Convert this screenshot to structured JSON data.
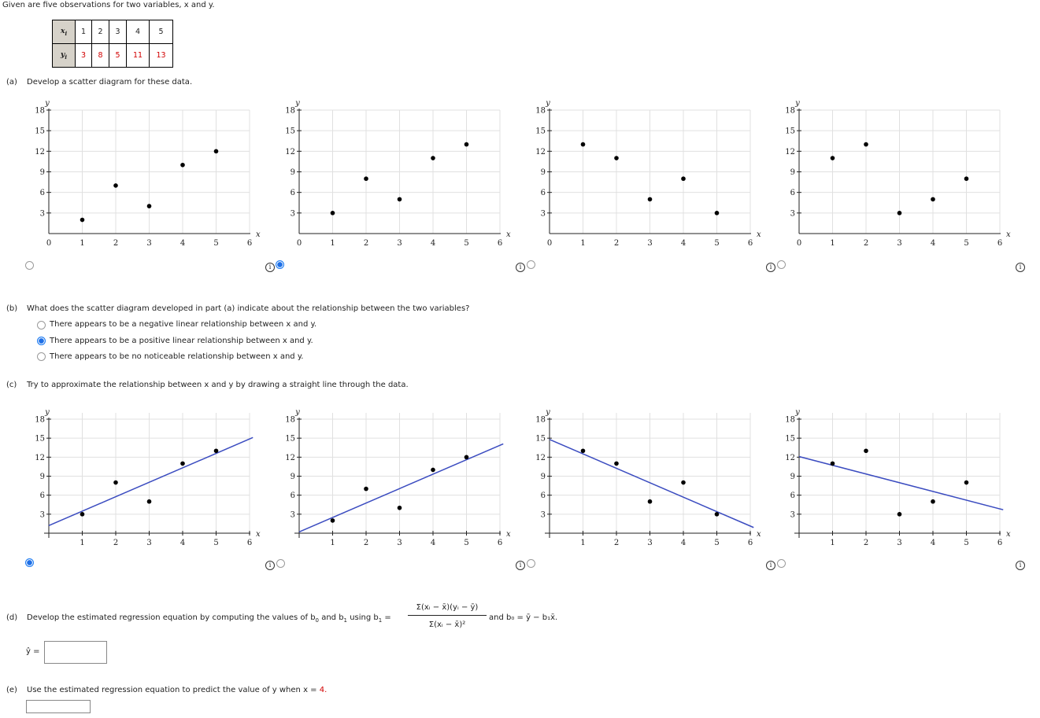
{
  "intro": "Given are five observations for two variables, x and y.",
  "table": {
    "x_label": "x",
    "y_label": "y",
    "sub": "i",
    "x_values": [
      "1",
      "2",
      "3",
      "4",
      "5"
    ],
    "y_values": [
      "3",
      "8",
      "5",
      "11",
      "13"
    ]
  },
  "part_a": {
    "label": "(a)",
    "prompt": "Develop a scatter diagram for these data.",
    "selected_index": 1
  },
  "part_b": {
    "label": "(b)",
    "prompt": "What does the scatter diagram developed in part (a) indicate about the relationship between the two variables?",
    "options": [
      {
        "text": "There appears to be a negative linear relationship between x and y.",
        "selected": false
      },
      {
        "text": "There appears to be a positive linear relationship between x and y.",
        "selected": true
      },
      {
        "text": "There appears to be no noticeable relationship between x and y.",
        "selected": false
      }
    ]
  },
  "part_c": {
    "label": "(c)",
    "prompt": "Try to approximate the relationship between x and y by drawing a straight line through the data.",
    "selected_index": 0
  },
  "part_d": {
    "label": "(d)",
    "prompt_pre": "Develop the estimated regression equation by computing the values of b",
    "prompt_mid": "and b",
    "prompt_post": "using b",
    "numerator": "Σ(xᵢ − x̄)(yᵢ − ȳ)",
    "denominator": "Σ(xᵢ − x̄)²",
    "b0_formula": "and b₀ = ȳ − b₁x̄.",
    "yhat_label": "ŷ =",
    "yhat_value": ""
  },
  "part_e": {
    "label": "(e)",
    "prompt_pre": "Use the estimated regression equation to predict the value of y when x =",
    "x_value": "4.",
    "answer_value": ""
  },
  "chart_data": [
    {
      "id": "a1",
      "type": "scatter",
      "title": "",
      "xlabel": "x",
      "ylabel": "y",
      "xlim": [
        0,
        6
      ],
      "ylim": [
        0,
        18
      ],
      "yticks": [
        3,
        6,
        9,
        12,
        15,
        18
      ],
      "xticks": [
        0,
        1,
        2,
        3,
        4,
        5,
        6
      ],
      "grid": true,
      "x": [
        1,
        2,
        3,
        4,
        5
      ],
      "y": [
        2,
        7,
        4,
        10,
        12
      ],
      "line": null
    },
    {
      "id": "a2",
      "type": "scatter",
      "title": "",
      "xlabel": "x",
      "ylabel": "y",
      "xlim": [
        0,
        6
      ],
      "ylim": [
        0,
        18
      ],
      "yticks": [
        3,
        6,
        9,
        12,
        15,
        18
      ],
      "xticks": [
        0,
        1,
        2,
        3,
        4,
        5,
        6
      ],
      "grid": true,
      "x": [
        1,
        2,
        3,
        4,
        5
      ],
      "y": [
        3,
        8,
        5,
        11,
        13
      ],
      "line": null
    },
    {
      "id": "a3",
      "type": "scatter",
      "title": "",
      "xlabel": "x",
      "ylabel": "y",
      "xlim": [
        0,
        6
      ],
      "ylim": [
        0,
        18
      ],
      "yticks": [
        3,
        6,
        9,
        12,
        15,
        18
      ],
      "xticks": [
        0,
        1,
        2,
        3,
        4,
        5,
        6
      ],
      "grid": true,
      "x": [
        1,
        2,
        3,
        4,
        5
      ],
      "y": [
        13,
        11,
        5,
        8,
        3
      ],
      "line": null
    },
    {
      "id": "a4",
      "type": "scatter",
      "title": "",
      "xlabel": "x",
      "ylabel": "y",
      "xlim": [
        0,
        6
      ],
      "ylim": [
        0,
        18
      ],
      "yticks": [
        3,
        6,
        9,
        12,
        15,
        18
      ],
      "xticks": [
        0,
        1,
        2,
        3,
        4,
        5,
        6
      ],
      "grid": true,
      "x": [
        1,
        2,
        3,
        4,
        5
      ],
      "y": [
        11,
        13,
        3,
        5,
        8
      ],
      "line": null
    },
    {
      "id": "c1",
      "type": "scatter",
      "title": "",
      "xlabel": "x",
      "ylabel": "y",
      "xlim": [
        0,
        6
      ],
      "ylim": [
        0,
        18
      ],
      "yticks": [
        3,
        6,
        9,
        12,
        15,
        18
      ],
      "xticks": [
        1,
        2,
        3,
        4,
        5,
        6
      ],
      "grid": true,
      "x": [
        1,
        2,
        3,
        4,
        5
      ],
      "y": [
        3,
        8,
        5,
        11,
        13
      ],
      "line": {
        "x0": 0,
        "y0": 1.2,
        "x1": 6.1,
        "y1": 15.1,
        "color": "#3b4cc0"
      }
    },
    {
      "id": "c2",
      "type": "scatter",
      "title": "",
      "xlabel": "x",
      "ylabel": "y",
      "xlim": [
        0,
        6
      ],
      "ylim": [
        0,
        18
      ],
      "yticks": [
        3,
        6,
        9,
        12,
        15,
        18
      ],
      "xticks": [
        1,
        2,
        3,
        4,
        5,
        6
      ],
      "grid": true,
      "x": [
        1,
        2,
        3,
        4,
        5
      ],
      "y": [
        2,
        7,
        4,
        10,
        12
      ],
      "line": {
        "x0": 0,
        "y0": 0.2,
        "x1": 6.1,
        "y1": 14.1,
        "color": "#3b4cc0"
      }
    },
    {
      "id": "c3",
      "type": "scatter",
      "title": "",
      "xlabel": "x",
      "ylabel": "y",
      "xlim": [
        0,
        6
      ],
      "ylim": [
        0,
        18
      ],
      "yticks": [
        3,
        6,
        9,
        12,
        15,
        18
      ],
      "xticks": [
        1,
        2,
        3,
        4,
        5,
        6
      ],
      "grid": true,
      "x": [
        1,
        2,
        3,
        4,
        5
      ],
      "y": [
        13,
        11,
        5,
        8,
        3
      ],
      "line": {
        "x0": 0,
        "y0": 14.8,
        "x1": 6.1,
        "y1": 0.9,
        "color": "#3b4cc0"
      }
    },
    {
      "id": "c4",
      "type": "scatter",
      "title": "",
      "xlabel": "x",
      "ylabel": "y",
      "xlim": [
        0,
        6
      ],
      "ylim": [
        0,
        18
      ],
      "yticks": [
        3,
        6,
        9,
        12,
        15,
        18
      ],
      "xticks": [
        1,
        2,
        3,
        4,
        5,
        6
      ],
      "grid": true,
      "x": [
        1,
        2,
        3,
        4,
        5
      ],
      "y": [
        11,
        13,
        3,
        5,
        8
      ],
      "line": {
        "x0": 0,
        "y0": 12.1,
        "x1": 6.1,
        "y1": 3.7,
        "color": "#3b4cc0"
      }
    }
  ],
  "colors": {
    "accent": "#1e7cf2",
    "line": "#3b4cc0",
    "grid": "#e0e0e0",
    "red_value": "#d20000"
  }
}
